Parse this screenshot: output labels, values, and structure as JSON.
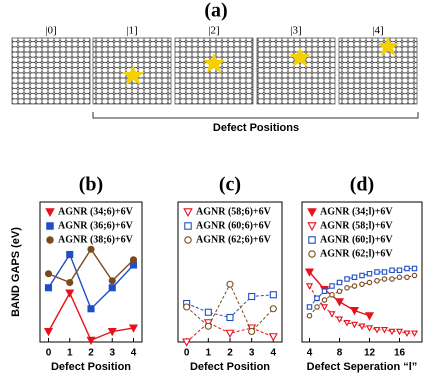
{
  "panel_a": {
    "label": "(a)",
    "structures": [
      "|0]",
      "|1]",
      "|2]",
      "|3]",
      "|4]"
    ],
    "bracket_label": "Defect Positions"
  },
  "chart_data": [
    {
      "type": "line",
      "title": "(b)",
      "y_label": "BAND GAPS (eV)",
      "x_label": "Defect Position",
      "xlim": [
        -0.4,
        4.4
      ],
      "xticks": [
        0,
        1,
        2,
        3,
        4
      ],
      "ylim": [
        0,
        0.8
      ],
      "series": [
        {
          "name": "AGNR (34;6)+6V",
          "color": "#e8101a",
          "marker": "triangle",
          "filled": true,
          "dashed": false,
          "x": [
            0,
            1,
            2,
            3,
            4
          ],
          "values": [
            0.06,
            0.28,
            0.01,
            0.06,
            0.08
          ]
        },
        {
          "name": "AGNR (36;6)+6V",
          "color": "#1f4fc8",
          "marker": "square",
          "filled": true,
          "dashed": false,
          "x": [
            0,
            1,
            2,
            3,
            4
          ],
          "values": [
            0.31,
            0.5,
            0.19,
            0.31,
            0.44
          ]
        },
        {
          "name": "AGNR (38;6)+6V",
          "color": "#7a4a1e",
          "marker": "circle",
          "filled": true,
          "dashed": false,
          "x": [
            0,
            1,
            2,
            3,
            4
          ],
          "values": [
            0.39,
            0.34,
            0.53,
            0.35,
            0.47
          ]
        }
      ]
    },
    {
      "type": "line",
      "title": "(c)",
      "x_label": "Defect Position",
      "xlim": [
        -0.4,
        4.4
      ],
      "xticks": [
        0,
        1,
        2,
        3,
        4
      ],
      "ylim": [
        0,
        0.8
      ],
      "series": [
        {
          "name": "AGNR (58;6)+6V",
          "color": "#e8101a",
          "marker": "triangle",
          "filled": false,
          "dashed": true,
          "x": [
            0,
            1,
            2,
            3,
            4
          ],
          "values": [
            0.0,
            0.11,
            0.05,
            0.08,
            0.03
          ]
        },
        {
          "name": "AGNR (60;6)+6V",
          "color": "#1f4fc8",
          "marker": "square",
          "filled": false,
          "dashed": true,
          "x": [
            0,
            1,
            2,
            3,
            4
          ],
          "values": [
            0.22,
            0.17,
            0.14,
            0.26,
            0.27
          ]
        },
        {
          "name": "AGNR (62;6)+6V",
          "color": "#7a4a1e",
          "marker": "circle",
          "filled": false,
          "dashed": true,
          "x": [
            0,
            1,
            2,
            3,
            4
          ],
          "values": [
            0.2,
            0.09,
            0.33,
            0.06,
            0.19
          ]
        }
      ]
    },
    {
      "type": "line",
      "title": "(d)",
      "x_label": "Defect Seperation “l”",
      "xlim": [
        3,
        19
      ],
      "xticks": [
        4,
        8,
        12,
        16
      ],
      "ylim": [
        0,
        0.8
      ],
      "series": [
        {
          "name": "AGNR (34;l)+6V",
          "color": "#e8101a",
          "marker": "triangle",
          "filled": true,
          "dashed": false,
          "x": [
            4,
            6,
            8,
            10,
            12
          ],
          "values": [
            0.4,
            0.3,
            0.23,
            0.18,
            0.15
          ]
        },
        {
          "name": "AGNR (58;l)+6V",
          "color": "#e8101a",
          "marker": "triangle",
          "filled": false,
          "dashed": true,
          "x": [
            4,
            5,
            6,
            7,
            8,
            9,
            10,
            11,
            12,
            13,
            14,
            15,
            16,
            17,
            18
          ],
          "values": [
            0.32,
            0.25,
            0.2,
            0.16,
            0.13,
            0.11,
            0.1,
            0.09,
            0.08,
            0.07,
            0.07,
            0.06,
            0.06,
            0.05,
            0.05
          ]
        },
        {
          "name": "AGNR (60;l)+6V",
          "color": "#1f4fc8",
          "marker": "square",
          "filled": false,
          "dashed": true,
          "x": [
            4,
            5,
            6,
            7,
            8,
            9,
            10,
            11,
            12,
            13,
            14,
            15,
            16,
            17,
            18
          ],
          "values": [
            0.2,
            0.25,
            0.29,
            0.32,
            0.34,
            0.36,
            0.37,
            0.38,
            0.39,
            0.4,
            0.4,
            0.41,
            0.41,
            0.42,
            0.42
          ]
        },
        {
          "name": "AGNR (62;l)+6V",
          "color": "#7a4a1e",
          "marker": "circle",
          "filled": false,
          "dashed": true,
          "x": [
            4,
            5,
            6,
            7,
            8,
            9,
            10,
            11,
            12,
            13,
            14,
            15,
            16,
            17,
            18
          ],
          "values": [
            0.15,
            0.2,
            0.24,
            0.27,
            0.29,
            0.31,
            0.32,
            0.33,
            0.34,
            0.35,
            0.36,
            0.36,
            0.37,
            0.37,
            0.38
          ]
        }
      ]
    }
  ]
}
